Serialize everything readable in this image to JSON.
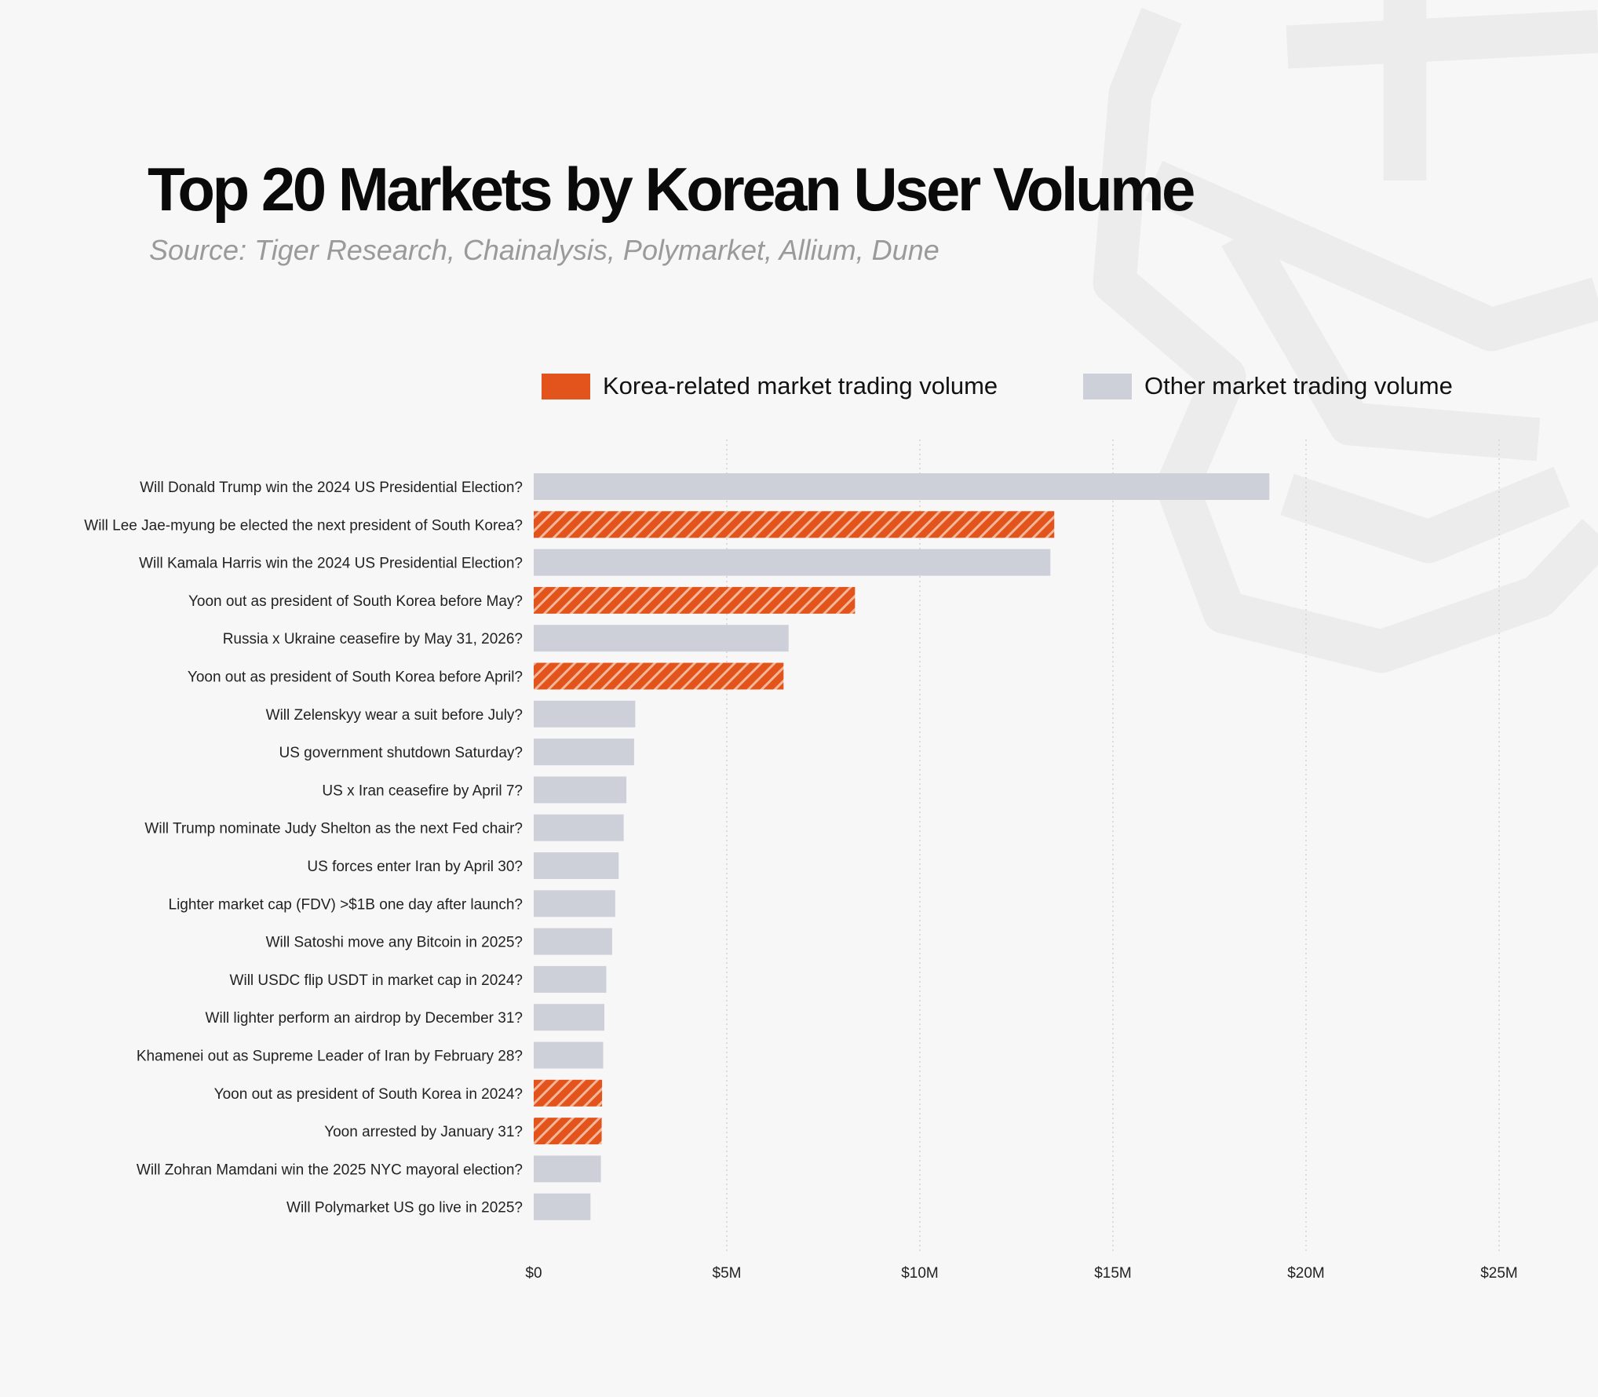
{
  "title": "Top 20 Markets by Korean User Volume",
  "subtitle": "Source: Tiger Research, Chainalysis, Polymarket, Allium, Dune",
  "colors": {
    "korea": "#e2541c",
    "korea_hatch": "#f3b79a",
    "other": "#cdd0d8",
    "grid": "#d4d4d4",
    "background": "#f7f7f7"
  },
  "legend": {
    "korea_label": "Korea-related market trading volume",
    "other_label": "Other market trading volume"
  },
  "chart_data": {
    "type": "bar",
    "orientation": "horizontal",
    "categories": [
      "Will Donald Trump win the 2024 US Presidential Election?",
      "Will Lee Jae-myung be elected the next president of South Korea?",
      "Will Kamala Harris win the 2024 US Presidential Election?",
      "Yoon out as president of South Korea before May?",
      "Russia x Ukraine ceasefire by May 31, 2026?",
      "Yoon out as president of South Korea before April?",
      "Will Zelenskyy wear a suit before July?",
      "US government shutdown Saturday?",
      "US x Iran ceasefire by April 7?",
      "Will Trump nominate Judy Shelton as the next Fed chair?",
      "US forces enter Iran by April 30?",
      "Lighter market cap (FDV) >$1B one day after launch?",
      "Will Satoshi move any Bitcoin in 2025?",
      "Will USDC flip USDT in market cap in 2024?",
      "Will lighter perform an airdrop by December 31?",
      "Khamenei out as Supreme Leader of Iran by February 28?",
      "Yoon out as president of South Korea in 2024?",
      "Yoon arrested by January 31?",
      "Will Zohran Mamdani win the 2025 NYC mayoral election?",
      "Will Polymarket US go live in 2025?"
    ],
    "values": [
      19.05,
      13.48,
      13.38,
      8.32,
      6.6,
      6.47,
      2.63,
      2.6,
      2.4,
      2.33,
      2.2,
      2.11,
      2.03,
      1.88,
      1.83,
      1.8,
      1.77,
      1.76,
      1.74,
      1.47
    ],
    "korea_related": [
      false,
      true,
      false,
      true,
      false,
      true,
      false,
      false,
      false,
      false,
      false,
      false,
      false,
      false,
      false,
      false,
      true,
      true,
      false,
      false
    ],
    "unit": "$M",
    "xlim": [
      0,
      25
    ],
    "x_ticks": [
      "$0",
      "$5M",
      "$10M",
      "$15M",
      "$20M",
      "$25M"
    ],
    "grid": "vertical dotted",
    "legend_position": "top"
  }
}
